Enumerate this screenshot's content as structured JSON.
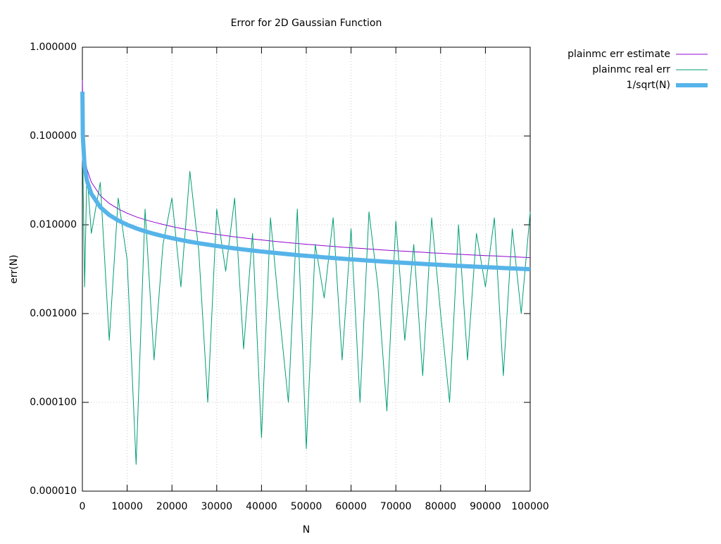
{
  "chart_data": {
    "type": "line",
    "title": "Error for 2D Gaussian Function",
    "x_label": "N",
    "y_label": "err(N)",
    "log_y": true,
    "grid": true,
    "legend": "outside-right",
    "xlim": [
      0,
      100000
    ],
    "ylim": [
      1e-05,
      1
    ],
    "xticks": [
      0,
      10000,
      20000,
      30000,
      40000,
      50000,
      60000,
      70000,
      80000,
      90000,
      100000
    ],
    "yticks": [
      {
        "value": 1e-05,
        "label": "0.000010"
      },
      {
        "value": 0.0001,
        "label": "0.000100"
      },
      {
        "value": 0.001,
        "label": "0.001000"
      },
      {
        "value": 0.01,
        "label": "0.010000"
      },
      {
        "value": 0.1,
        "label": "0.100000"
      },
      {
        "value": 1,
        "label": "1.000000"
      }
    ],
    "x": [
      10,
      100,
      500,
      1000,
      2000,
      4000,
      6000,
      8000,
      10000,
      12000,
      14000,
      16000,
      18000,
      20000,
      22000,
      24000,
      26000,
      28000,
      30000,
      32000,
      34000,
      36000,
      38000,
      40000,
      42000,
      44000,
      46000,
      48000,
      50000,
      52000,
      54000,
      56000,
      58000,
      60000,
      62000,
      64000,
      66000,
      68000,
      70000,
      72000,
      74000,
      76000,
      78000,
      80000,
      82000,
      84000,
      86000,
      88000,
      90000,
      92000,
      94000,
      96000,
      98000,
      100000
    ],
    "series": [
      {
        "name": "plainmc err estimate",
        "color": "#9400d3",
        "values": [
          0.427,
          0.135,
          0.0604,
          0.0427,
          0.0302,
          0.0213,
          0.0174,
          0.0151,
          0.0135,
          0.0123,
          0.0114,
          0.0107,
          0.0101,
          0.00955,
          0.0091,
          0.00871,
          0.00837,
          0.00807,
          0.00779,
          0.00755,
          0.00732,
          0.00711,
          0.00693,
          0.00675,
          0.00659,
          0.00644,
          0.00629,
          0.00616,
          0.00603,
          0.00593,
          0.00581,
          0.00571,
          0.0056,
          0.00551,
          0.00543,
          0.00533,
          0.00525,
          0.00517,
          0.0051,
          0.00504,
          0.00497,
          0.0049,
          0.00483,
          0.00478,
          0.00471,
          0.00466,
          0.0046,
          0.00455,
          0.0045,
          0.00446,
          0.0044,
          0.00436,
          0.00431,
          0.00427
        ]
      },
      {
        "name": "plainmc real err",
        "color": "#009e73",
        "values": [
          0.3,
          0.05,
          0.002,
          0.04,
          0.008,
          0.03,
          0.0005,
          0.02,
          0.004,
          2e-05,
          0.015,
          0.0003,
          0.006,
          0.02,
          0.002,
          0.04,
          0.005,
          0.0001,
          0.015,
          0.003,
          0.02,
          0.0004,
          0.008,
          4e-05,
          0.012,
          0.001,
          0.0001,
          0.015,
          3e-05,
          0.006,
          0.0015,
          0.012,
          0.0003,
          0.009,
          0.0001,
          0.014,
          0.002,
          8e-05,
          0.011,
          0.0005,
          0.006,
          0.0002,
          0.012,
          0.001,
          0.0001,
          0.01,
          0.0003,
          0.008,
          0.002,
          0.012,
          0.0002,
          0.009,
          0.001,
          0.014
        ]
      },
      {
        "name": "1/sqrt(N)",
        "color": "#56b4e9",
        "values": [
          0.316,
          0.1,
          0.0447,
          0.0316,
          0.0224,
          0.0158,
          0.0129,
          0.0112,
          0.01,
          0.00913,
          0.00845,
          0.00791,
          0.00745,
          0.00707,
          0.00674,
          0.00645,
          0.0062,
          0.00598,
          0.00577,
          0.00559,
          0.00542,
          0.00527,
          0.00513,
          0.005,
          0.00488,
          0.00477,
          0.00466,
          0.00456,
          0.00447,
          0.00439,
          0.0043,
          0.00423,
          0.00415,
          0.00408,
          0.00402,
          0.00395,
          0.00389,
          0.00383,
          0.00378,
          0.00373,
          0.00368,
          0.00363,
          0.00358,
          0.00354,
          0.00349,
          0.00345,
          0.00341,
          0.00337,
          0.00333,
          0.0033,
          0.00326,
          0.00323,
          0.00319,
          0.00316
        ]
      }
    ]
  }
}
